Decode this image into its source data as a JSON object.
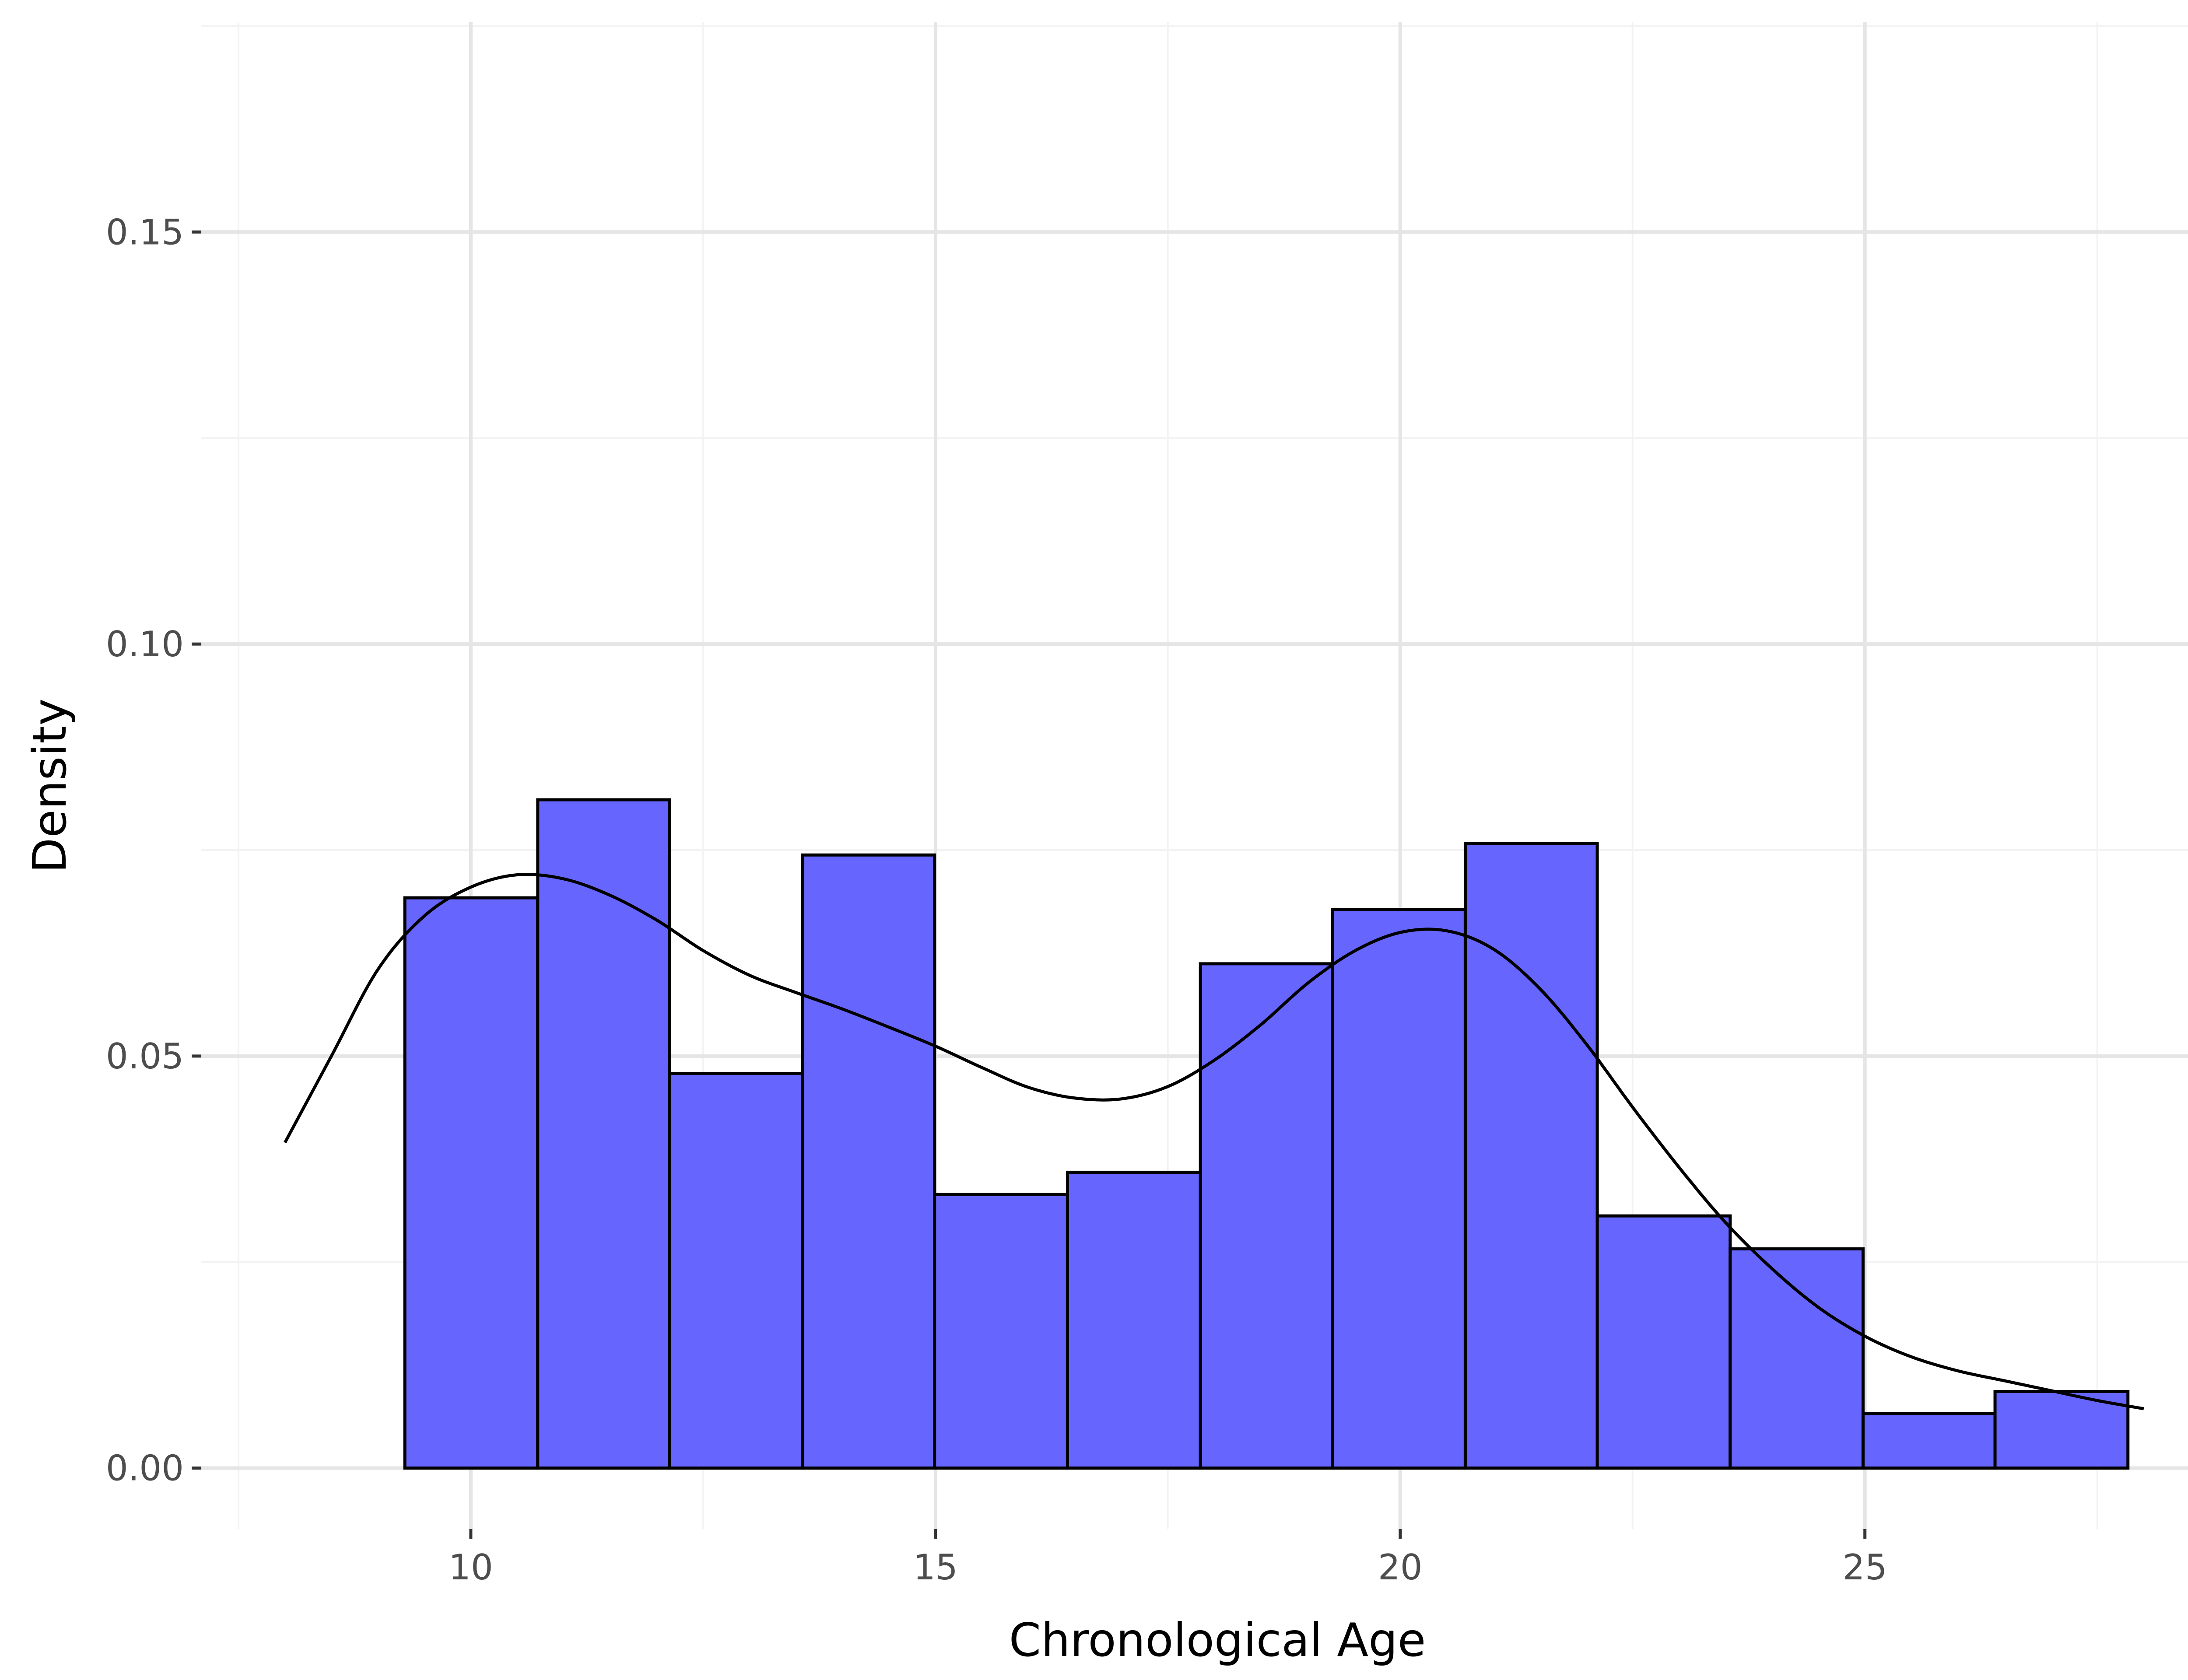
{
  "chart_data": {
    "type": "bar",
    "subtype": "histogram with density curve",
    "xlabel": "Chronological Age",
    "ylabel": "Density",
    "xlim": [
      7.1,
      28.9
    ],
    "ylim": [
      -0.0074,
      0.1755
    ],
    "x_ticks": [
      10,
      15,
      20,
      25
    ],
    "x_tick_labels": [
      "10",
      "15",
      "20",
      "25"
    ],
    "y_ticks": [
      0.0,
      0.05,
      0.1,
      0.15
    ],
    "y_tick_labels": [
      "0.00",
      "0.05",
      "0.10",
      "0.15"
    ],
    "grid": true,
    "legend": "none",
    "bins": [
      {
        "x0": 9.29,
        "x1": 10.72,
        "value": 0.0692
      },
      {
        "x0": 10.72,
        "x1": 12.14,
        "value": 0.0811
      },
      {
        "x0": 12.14,
        "x1": 13.57,
        "value": 0.0479
      },
      {
        "x0": 13.57,
        "x1": 14.99,
        "value": 0.0744
      },
      {
        "x0": 14.99,
        "x1": 16.42,
        "value": 0.0332
      },
      {
        "x0": 16.42,
        "x1": 17.85,
        "value": 0.0359
      },
      {
        "x0": 17.85,
        "x1": 19.27,
        "value": 0.0612
      },
      {
        "x0": 19.27,
        "x1": 20.7,
        "value": 0.0678
      },
      {
        "x0": 20.7,
        "x1": 22.12,
        "value": 0.0758
      },
      {
        "x0": 22.12,
        "x1": 23.55,
        "value": 0.0306
      },
      {
        "x0": 23.55,
        "x1": 24.98,
        "value": 0.0266
      },
      {
        "x0": 24.98,
        "x1": 26.4,
        "value": 0.0066
      },
      {
        "x0": 26.4,
        "x1": 27.83,
        "value": 0.0093
      }
    ],
    "density_curve": {
      "x": [
        8.0,
        8.5,
        9.0,
        9.5,
        10.0,
        10.5,
        11.0,
        11.5,
        12.0,
        12.5,
        13.0,
        13.5,
        14.0,
        14.5,
        15.0,
        15.5,
        16.0,
        16.5,
        17.0,
        17.5,
        18.0,
        18.5,
        19.0,
        19.5,
        20.0,
        20.5,
        21.0,
        21.5,
        22.0,
        22.5,
        23.0,
        23.5,
        24.0,
        24.5,
        25.0,
        25.5,
        26.0,
        26.5,
        27.0,
        27.5,
        28.0
      ],
      "y": [
        0.0395,
        0.05,
        0.0605,
        0.067,
        0.0705,
        0.072,
        0.0715,
        0.0695,
        0.0665,
        0.0628,
        0.0598,
        0.0577,
        0.0557,
        0.0535,
        0.0512,
        0.0486,
        0.0462,
        0.0449,
        0.0448,
        0.0463,
        0.0495,
        0.0538,
        0.0588,
        0.0627,
        0.065,
        0.0652,
        0.063,
        0.0582,
        0.0515,
        0.0438,
        0.0365,
        0.0298,
        0.0242,
        0.0195,
        0.016,
        0.0135,
        0.0118,
        0.0106,
        0.0094,
        0.0082,
        0.0072
      ]
    },
    "colors": {
      "bar_fill": "#6666ff",
      "bar_stroke": "#000000",
      "curve": "#000000",
      "grid_major": "#e5e5e5",
      "grid_minor": "#f3f3f3"
    }
  }
}
